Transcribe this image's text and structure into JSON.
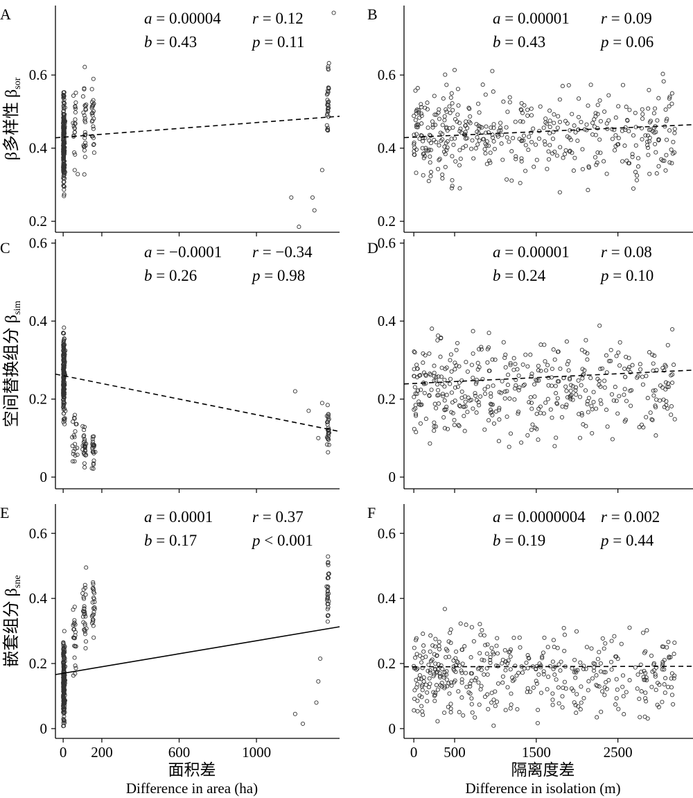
{
  "chart_data": [
    {
      "panel": "A",
      "type": "scatter",
      "ylabel_cn": "β多样性 β",
      "ylabel_sub": "sor",
      "xlim": [
        -40,
        1430
      ],
      "ylim": [
        0.17,
        0.79
      ],
      "yticks": [
        0.2,
        0.4,
        0.6
      ],
      "ytick_labels": [
        "0.2",
        "0.4",
        "0.6"
      ],
      "xticks": [
        0,
        200,
        600,
        1000
      ],
      "xtick_labels": [
        "0",
        "200",
        "600",
        "1000"
      ],
      "fit": {
        "style": "dashed",
        "intercept": 0.43,
        "slope": 4e-05
      },
      "stats": {
        "a": "0.00004",
        "b": "0.43",
        "r": "0.12",
        "p": "0.11",
        "p_op": "="
      }
    },
    {
      "panel": "B",
      "type": "scatter",
      "xlim": [
        -120,
        3420
      ],
      "ylim": [
        0.17,
        0.79
      ],
      "yticks": [
        0.2,
        0.4,
        0.6
      ],
      "ytick_labels": [
        "0.2",
        "0.4",
        "0.6"
      ],
      "xticks": [
        0,
        500,
        1500,
        2500
      ],
      "xtick_labels": [
        "0",
        "500",
        "1500",
        "2500"
      ],
      "fit": {
        "style": "dashed",
        "intercept": 0.43,
        "slope": 1e-05
      },
      "stats": {
        "a": "0.00001",
        "b": "0.43",
        "r": "0.09",
        "p": "0.06",
        "p_op": "="
      }
    },
    {
      "panel": "C",
      "type": "scatter",
      "ylabel_cn": "空间替换组分 β",
      "ylabel_sub": "sim",
      "xlim": [
        -40,
        1430
      ],
      "ylim": [
        -0.03,
        0.61
      ],
      "yticks": [
        0,
        0.2,
        0.4,
        0.6
      ],
      "ytick_labels": [
        "0",
        "0.2",
        "0.4",
        "0.6"
      ],
      "xticks": [
        0,
        200,
        600,
        1000
      ],
      "xtick_labels": [
        "0",
        "200",
        "600",
        "1000"
      ],
      "fit": {
        "style": "dashed",
        "intercept": 0.26,
        "slope": -0.0001
      },
      "stats": {
        "a": "−0.0001",
        "b": "0.26",
        "r": "−0.34",
        "p": "0.98",
        "p_op": "="
      }
    },
    {
      "panel": "D",
      "type": "scatter",
      "xlim": [
        -120,
        3420
      ],
      "ylim": [
        -0.03,
        0.61
      ],
      "yticks": [
        0,
        0.2,
        0.4,
        0.6
      ],
      "ytick_labels": [
        "0",
        "0.2",
        "0.4",
        "0.6"
      ],
      "xticks": [
        0,
        500,
        1500,
        2500
      ],
      "xtick_labels": [
        "0",
        "500",
        "1500",
        "2500"
      ],
      "fit": {
        "style": "dashed",
        "intercept": 0.24,
        "slope": 1e-05
      },
      "stats": {
        "a": "0.00001",
        "b": "0.24",
        "r": "0.08",
        "p": "0.10",
        "p_op": "="
      }
    },
    {
      "panel": "E",
      "type": "scatter",
      "ylabel_cn": "嵌套组分 β",
      "ylabel_sub": "sne",
      "xlim": [
        -40,
        1430
      ],
      "ylim": [
        -0.03,
        0.69
      ],
      "yticks": [
        0,
        0.2,
        0.4,
        0.6
      ],
      "ytick_labels": [
        "0",
        "0.2",
        "0.4",
        "0.6"
      ],
      "xticks": [
        0,
        200,
        600,
        1000
      ],
      "xtick_labels": [
        "0",
        "200",
        "600",
        "1000"
      ],
      "xlabel_cn": "面积差",
      "xlabel_en": "Difference in area (ha)",
      "fit": {
        "style": "solid",
        "intercept": 0.17,
        "slope": 0.0001
      },
      "stats": {
        "a": "0.0001",
        "b": "0.17",
        "r": "0.37",
        "p": "0.001",
        "p_op": "<"
      }
    },
    {
      "panel": "F",
      "type": "scatter",
      "xlim": [
        -120,
        3420
      ],
      "ylim": [
        -0.03,
        0.69
      ],
      "yticks": [
        0,
        0.2,
        0.4,
        0.6
      ],
      "ytick_labels": [
        "0",
        "0.2",
        "0.4",
        "0.6"
      ],
      "xticks": [
        0,
        500,
        1500,
        2500
      ],
      "xtick_labels": [
        "0",
        "500",
        "1500",
        "2500"
      ],
      "xlabel_cn": "隔离度差",
      "xlabel_en": "Difference in isolation (m)",
      "fit": {
        "style": "dashed",
        "intercept": 0.19,
        "slope": 4e-07
      },
      "stats": {
        "a": "0.0000004",
        "b": "0.19",
        "r": "0.002",
        "p": "0.44",
        "p_op": "="
      }
    }
  ]
}
